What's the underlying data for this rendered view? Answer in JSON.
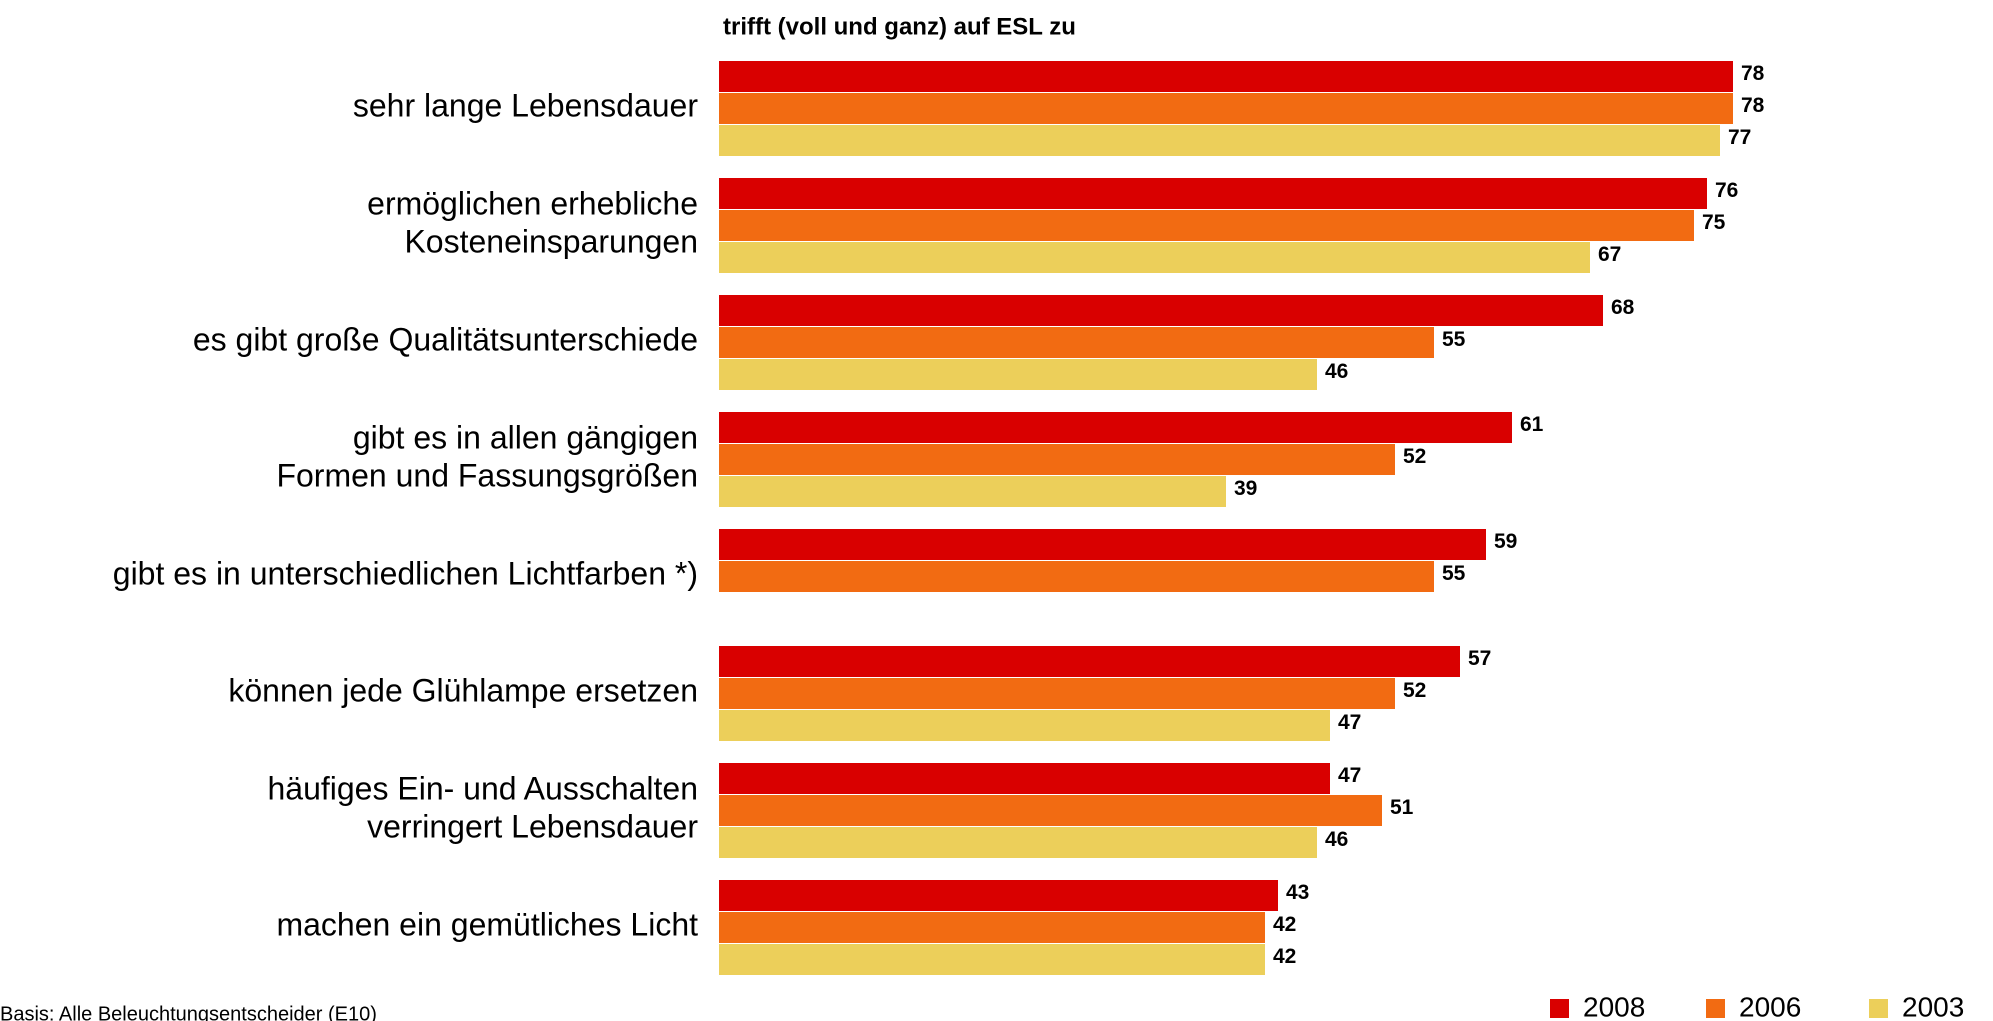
{
  "chart_data": {
    "type": "bar",
    "orientation": "horizontal",
    "title": "trifft (voll und ganz) auf ESL zu",
    "categories": [
      "sehr lange Lebensdauer",
      "ermöglichen erhebliche\nKosteneinsparungen",
      "es gibt große Qualitätsunterschiede",
      "gibt es in allen gängigen\nFormen und Fassungsgrößen",
      "gibt es in unterschiedlichen Lichtfarben *)",
      "können jede Glühlampe ersetzen",
      "häufiges Ein- und Ausschalten\nverringert Lebensdauer",
      "machen ein gemütliches Licht"
    ],
    "series": [
      {
        "name": "2008",
        "color": "#d90000",
        "values": [
          78,
          76,
          68,
          61,
          59,
          57,
          47,
          43
        ]
      },
      {
        "name": "2006",
        "color": "#f26b12",
        "values": [
          78,
          75,
          55,
          52,
          55,
          52,
          51,
          42
        ]
      },
      {
        "name": "2003",
        "color": "#eccf5a",
        "values": [
          77,
          67,
          46,
          39,
          null,
          47,
          46,
          42
        ]
      }
    ],
    "note": "Basis: Alle Beleuchtungsentscheider (E10)",
    "legend": "bottom-right"
  }
}
